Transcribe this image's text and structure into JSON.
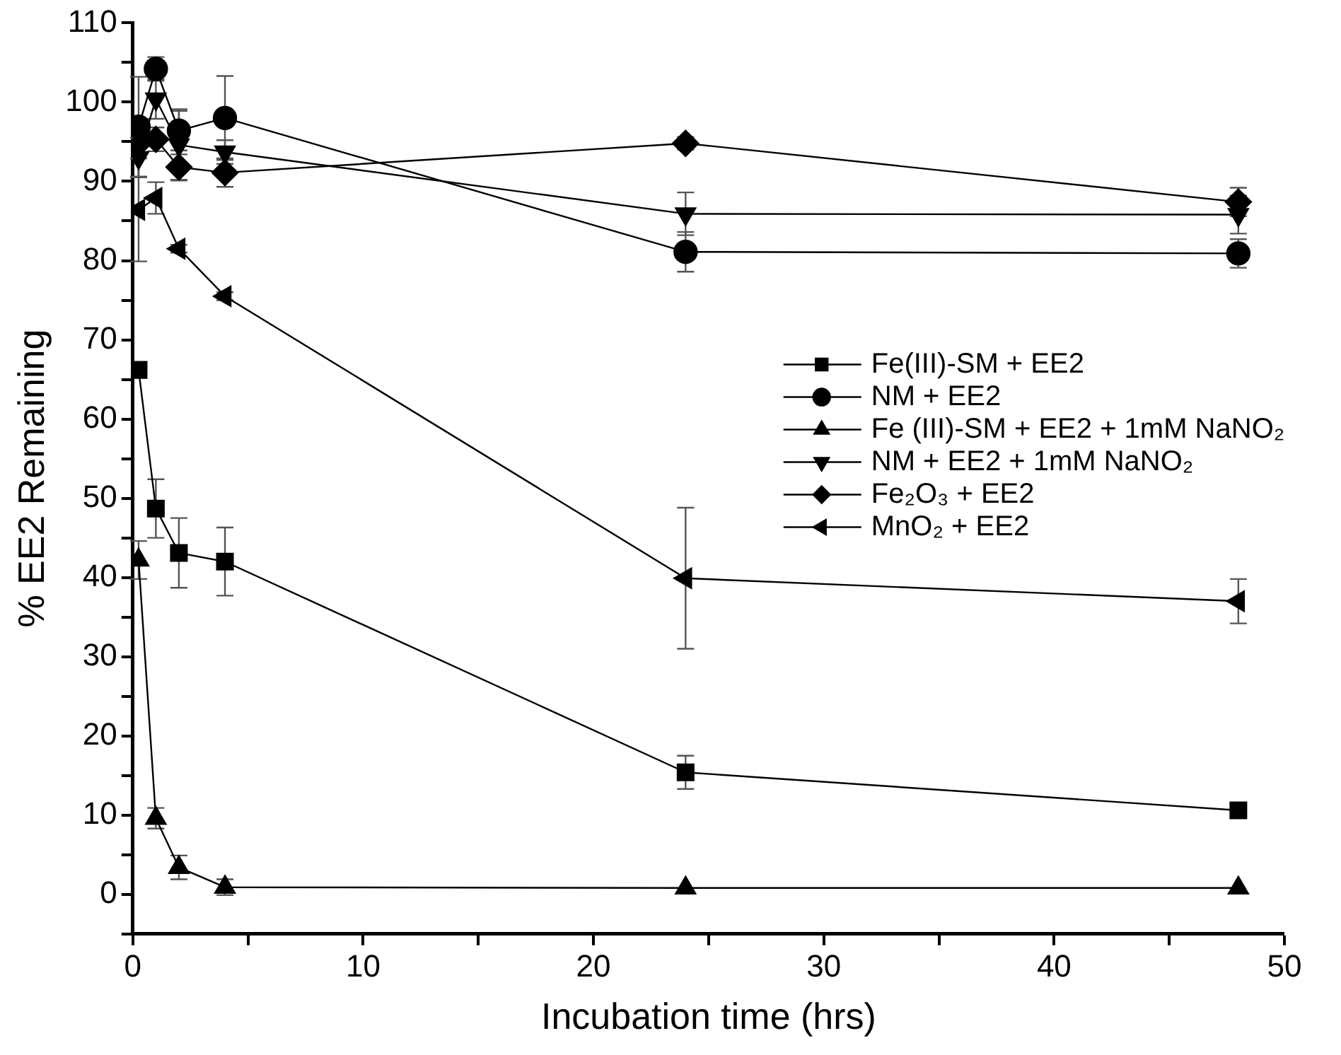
{
  "chart_data": {
    "type": "line",
    "xlabel": "Incubation time (hrs)",
    "ylabel": "% EE2 Remaining",
    "x": [
      0.25,
      1,
      2,
      4,
      24,
      48
    ],
    "xlim": [
      0,
      50
    ],
    "xticks": [
      0,
      {
        "value": 5,
        "label": null
      },
      10,
      {
        "value": 15,
        "label": null
      },
      20,
      {
        "value": 25,
        "label": null
      },
      30,
      {
        "value": 35,
        "label": null
      },
      40,
      {
        "value": 45,
        "label": null
      },
      50
    ],
    "ylim": [
      -5,
      110
    ],
    "yticks": [
      {
        "value": -5,
        "label": null
      },
      0,
      {
        "value": 5,
        "label": null
      },
      10,
      {
        "value": 15,
        "label": null
      },
      20,
      {
        "value": 25,
        "label": null
      },
      30,
      {
        "value": 35,
        "label": null
      },
      40,
      {
        "value": 45,
        "label": null
      },
      50,
      {
        "value": 55,
        "label": null
      },
      60,
      {
        "value": 65,
        "label": null
      },
      70,
      {
        "value": 75,
        "label": null
      },
      80,
      {
        "value": 85,
        "label": null
      },
      90,
      {
        "value": 95,
        "label": null
      },
      100,
      {
        "value": 105,
        "label": null
      },
      110
    ],
    "grid": false,
    "legend": "right",
    "line_style": "solid",
    "series": [
      {
        "name": "Fe(III)-SM + EE2",
        "color": "#000000",
        "marker": "square",
        "values": [
          66.2,
          48.7,
          43.1,
          42.0,
          15.4,
          10.6
        ],
        "errors": [
          null,
          3.7,
          4.4,
          4.3,
          2.1,
          null
        ]
      },
      {
        "name": "NM + EE2",
        "color": "#000000",
        "marker": "circle",
        "values": [
          96.9,
          104.2,
          96.4,
          98.0,
          81.1,
          80.9
        ],
        "errors": [
          6.3,
          1.5,
          2.5,
          5.3,
          2.5,
          1.8
        ]
      },
      {
        "name": "Fe (III)-SM + EE2 + 1mM NaNO₂",
        "color": "#000000",
        "marker": "triangle",
        "values": [
          42.2,
          9.6,
          3.4,
          0.9,
          0.8,
          0.8
        ],
        "errors": [
          2.4,
          1.3,
          1.5,
          1.0,
          null,
          null
        ]
      },
      {
        "name": "NM + EE2 + 1mM NaNO₂",
        "color": "#000000",
        "marker": "triangle-down",
        "values": [
          93.0,
          100.4,
          94.6,
          93.7,
          85.9,
          85.8
        ],
        "errors": [
          2.5,
          2.5,
          4.5,
          1.5,
          2.7,
          2.4
        ]
      },
      {
        "name": "Fe₂O₃ + EE2",
        "color": "#000000",
        "marker": "diamond",
        "values": [
          94.8,
          95.3,
          91.8,
          91.1,
          94.8,
          87.4
        ],
        "errors": [
          null,
          1.5,
          1.6,
          1.8,
          0.8,
          1.8
        ]
      },
      {
        "name": "MnO₂ + EE2",
        "color": "#000000",
        "marker": "triangle-left",
        "values": [
          86.4,
          87.9,
          81.5,
          75.5,
          39.9,
          37.0
        ],
        "errors": [
          6.5,
          2.0,
          0.5,
          0.5,
          8.9,
          2.8
        ]
      }
    ]
  }
}
